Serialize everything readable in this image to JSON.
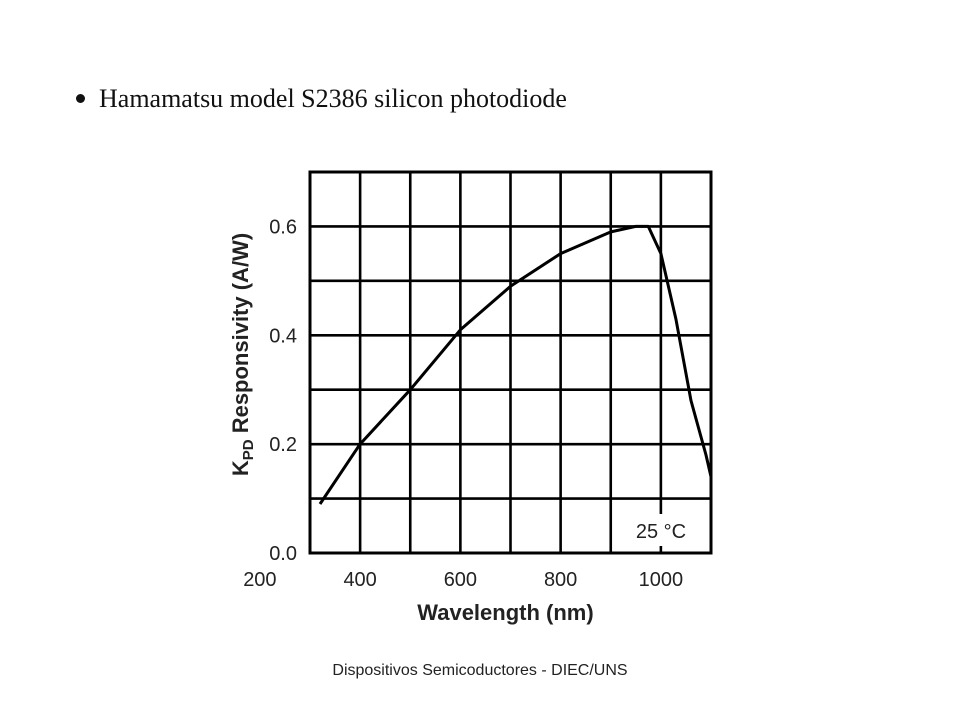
{
  "bullet": {
    "text": "Hamamatsu model S2386 silicon photodiode"
  },
  "footer": {
    "text": "Dispositivos Semicoductores - DIEC/UNS"
  },
  "chart_data": {
    "type": "line",
    "xlabel": "Wavelength (nm)",
    "ylabel_main": "K",
    "ylabel_sub": "PD",
    "ylabel_rest": " Responsivity (A/W)",
    "xlim": [
      300,
      1100
    ],
    "ylim": [
      0,
      0.7
    ],
    "x_ticks": [
      200,
      400,
      600,
      800,
      1000
    ],
    "y_ticks": [
      0.0,
      0.2,
      0.4,
      0.6
    ],
    "x_tick_labels": [
      "200",
      "400",
      "600",
      "800",
      "1000"
    ],
    "y_tick_labels": [
      "0.0",
      "0.2",
      "0.4",
      "0.6"
    ],
    "x_grid": [
      300,
      400,
      500,
      600,
      700,
      800,
      900,
      1000,
      1100
    ],
    "y_grid": [
      0.0,
      0.1,
      0.2,
      0.3,
      0.4,
      0.5,
      0.6,
      0.7
    ],
    "grid": true,
    "annotation": "25 °C",
    "series": [
      {
        "x": [
          320,
          400,
          500,
          600,
          700,
          800,
          900,
          950,
          975,
          1000,
          1030,
          1060,
          1090,
          1100
        ],
        "y": [
          0.09,
          0.2,
          0.3,
          0.41,
          0.49,
          0.55,
          0.59,
          0.6,
          0.6,
          0.55,
          0.43,
          0.28,
          0.18,
          0.14
        ]
      }
    ]
  }
}
